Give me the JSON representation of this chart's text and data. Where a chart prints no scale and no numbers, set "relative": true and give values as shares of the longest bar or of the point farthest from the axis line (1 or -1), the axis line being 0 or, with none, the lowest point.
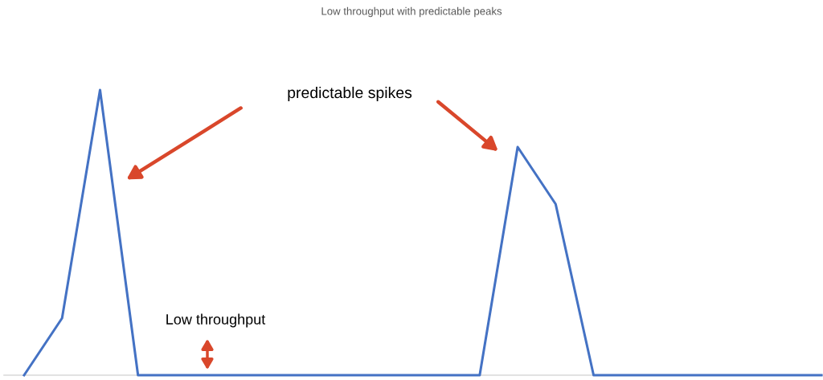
{
  "chart_data": {
    "type": "line",
    "title": "Low throughput with predictable peaks",
    "relative": true,
    "categories": [
      null,
      null,
      null,
      null,
      null,
      null,
      null,
      null,
      null,
      null,
      null,
      null,
      null,
      null,
      null,
      null,
      null,
      null,
      null,
      null,
      null,
      null
    ],
    "series": [
      {
        "color": "#4472c4",
        "values": [
          0,
          0.2,
          1,
          0,
          0,
          0,
          0,
          0,
          0,
          0,
          0,
          0,
          0,
          0.8,
          0.6,
          0,
          0,
          0,
          0,
          0,
          0,
          0
        ]
      }
    ],
    "annotations": [
      "predictable spikes",
      "Low throughput"
    ],
    "grid": false,
    "legend": false,
    "marker": "none",
    "line_style": "solid"
  }
}
